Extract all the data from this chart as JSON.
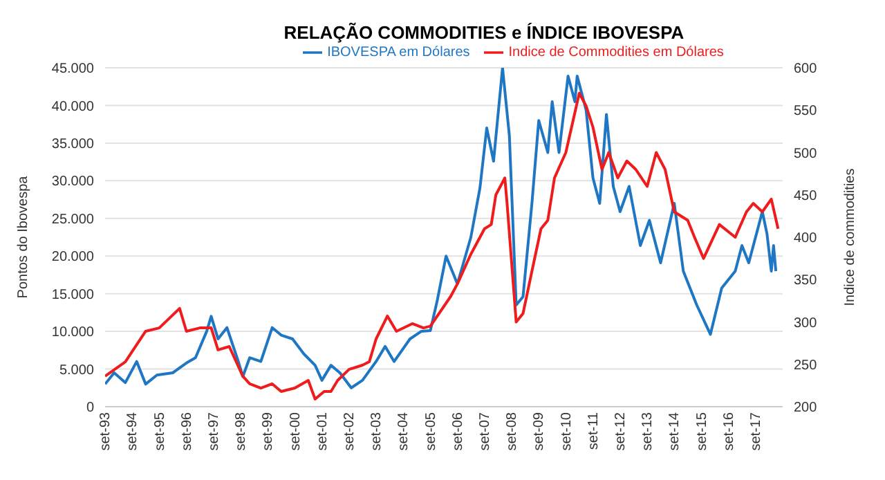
{
  "chart_data": {
    "type": "line",
    "title": "RELAÇÃO COMMODITIES e ÍNDICE IBOVESPA",
    "ylabel": "Pontos do Ibovespa",
    "y2label": "Indice de commodities",
    "xlim": [
      "1993-09",
      "2018-09"
    ],
    "xticks": [
      {
        "value": "1993-09",
        "label": "set-93"
      },
      {
        "value": "1994-09",
        "label": "set-94"
      },
      {
        "value": "1995-09",
        "label": "set-95"
      },
      {
        "value": "1996-09",
        "label": "set-96"
      },
      {
        "value": "1997-09",
        "label": "set-97"
      },
      {
        "value": "1998-09",
        "label": "set-98"
      },
      {
        "value": "1999-09",
        "label": "set-99"
      },
      {
        "value": "2000-09",
        "label": "set-00"
      },
      {
        "value": "2001-09",
        "label": "set-01"
      },
      {
        "value": "2002-09",
        "label": "set-02"
      },
      {
        "value": "2003-09",
        "label": "set-03"
      },
      {
        "value": "2004-09",
        "label": "set-04"
      },
      {
        "value": "2005-09",
        "label": "set-05"
      },
      {
        "value": "2006-09",
        "label": "set-06"
      },
      {
        "value": "2007-09",
        "label": "set-07"
      },
      {
        "value": "2008-09",
        "label": "set-08"
      },
      {
        "value": "2009-09",
        "label": "set-09"
      },
      {
        "value": "2010-09",
        "label": "set-10"
      },
      {
        "value": "2011-09",
        "label": "set-11"
      },
      {
        "value": "2012-09",
        "label": "set-12"
      },
      {
        "value": "2013-09",
        "label": "set-13"
      },
      {
        "value": "2014-09",
        "label": "set-14"
      },
      {
        "value": "2015-09",
        "label": "set-15"
      },
      {
        "value": "2016-09",
        "label": "set-16"
      },
      {
        "value": "2017-09",
        "label": "set-17"
      }
    ],
    "ylim": [
      0,
      45000
    ],
    "yticks": [
      0,
      {
        "value": 5000,
        "label": "5.000"
      },
      {
        "value": 10000,
        "label": "10.000"
      },
      {
        "value": 15000,
        "label": "15.000"
      },
      {
        "value": 20000,
        "label": "20.000"
      },
      {
        "value": 25000,
        "label": "25.000"
      },
      {
        "value": 30000,
        "label": "30.000"
      },
      {
        "value": 35000,
        "label": "35.000"
      },
      {
        "value": 40000,
        "label": "40.000"
      },
      {
        "value": 45000,
        "label": "45.000"
      }
    ],
    "y2lim": [
      200,
      600
    ],
    "y2ticks": [
      200,
      250,
      300,
      350,
      400,
      450,
      500,
      550,
      600
    ],
    "grid": "y",
    "legend": "top",
    "marker": "none",
    "line_style": "solid",
    "series": [
      {
        "name": "IBOVESPA em Dólares",
        "color": "#1f77c4",
        "x": [
          "1993-09",
          "1994-01",
          "1994-06",
          "1994-11",
          "1995-03",
          "1995-08",
          "1996-03",
          "1996-09",
          "1997-01",
          "1997-06",
          "1997-08",
          "1997-11",
          "1998-03",
          "1998-08",
          "1998-10",
          "1999-01",
          "1999-06",
          "1999-11",
          "2000-03",
          "2000-08",
          "2001-01",
          "2001-06",
          "2001-09",
          "2002-01",
          "2002-05",
          "2002-10",
          "2003-03",
          "2003-09",
          "2004-01",
          "2004-05",
          "2004-12",
          "2005-05",
          "2005-09",
          "2005-12",
          "2006-04",
          "2006-09",
          "2007-03",
          "2007-07",
          "2007-10",
          "2008-01",
          "2008-05",
          "2008-08",
          "2008-11",
          "2009-02",
          "2009-06",
          "2009-09",
          "2010-01",
          "2010-03",
          "2010-06",
          "2010-10",
          "2011-01",
          "2011-02",
          "2011-06",
          "2011-09",
          "2011-12",
          "2012-03",
          "2012-06",
          "2012-09",
          "2013-01",
          "2013-06",
          "2013-10",
          "2014-03",
          "2014-09",
          "2015-01",
          "2015-07",
          "2016-01",
          "2016-06",
          "2016-12",
          "2017-03",
          "2017-06",
          "2017-12",
          "2018-02",
          "2018-04",
          "2018-05",
          "2018-06"
        ],
        "values": [
          3000,
          4500,
          3200,
          6000,
          3000,
          4200,
          4500,
          5800,
          6500,
          10000,
          12000,
          9000,
          10500,
          6000,
          4000,
          6500,
          6000,
          10500,
          9500,
          9000,
          7000,
          5500,
          3500,
          5500,
          4500,
          2500,
          3500,
          6000,
          8000,
          6000,
          9000,
          10000,
          10100,
          14000,
          20000,
          16300,
          22500,
          29000,
          37000,
          32600,
          45000,
          36000,
          13500,
          14600,
          27000,
          38000,
          33750,
          40500,
          33750,
          43900,
          40500,
          43900,
          39400,
          30400,
          27000,
          38800,
          29250,
          25900,
          29250,
          21400,
          24750,
          19100,
          27000,
          18000,
          13500,
          9600,
          15750,
          18000,
          21400,
          19100,
          25900,
          23000,
          18000,
          21400,
          18000
        ]
      },
      {
        "name": "Indice de Commodities em Dólares",
        "color": "#ee1c1c",
        "axis": "y2",
        "x": [
          "1993-09",
          "1994-06",
          "1995-03",
          "1995-09",
          "1996-06",
          "1996-09",
          "1997-03",
          "1997-08",
          "1997-11",
          "1998-04",
          "1998-10",
          "1999-01",
          "1999-06",
          "1999-11",
          "2000-03",
          "2000-09",
          "2001-03",
          "2001-06",
          "2001-10",
          "2002-01",
          "2002-04",
          "2002-09",
          "2003-03",
          "2003-06",
          "2003-09",
          "2004-02",
          "2004-06",
          "2005-01",
          "2005-06",
          "2005-09",
          "2006-06",
          "2006-09",
          "2007-03",
          "2007-09",
          "2007-12",
          "2008-02",
          "2008-06",
          "2008-07",
          "2008-11",
          "2009-02",
          "2009-06",
          "2009-10",
          "2010-01",
          "2010-04",
          "2010-09",
          "2011-03",
          "2011-06",
          "2011-09",
          "2012-01",
          "2012-04",
          "2012-08",
          "2012-12",
          "2013-04",
          "2013-09",
          "2014-01",
          "2014-05",
          "2014-09",
          "2015-03",
          "2015-06",
          "2015-10",
          "2016-05",
          "2016-12",
          "2017-05",
          "2017-08",
          "2017-12",
          "2018-04",
          "2018-07"
        ],
        "values": [
          236,
          253,
          289,
          293,
          316,
          289,
          293,
          293,
          267,
          271,
          236,
          227,
          222,
          227,
          218,
          222,
          231,
          209,
          218,
          218,
          231,
          244,
          249,
          253,
          280,
          307,
          289,
          298,
          293,
          295,
          330,
          345,
          380,
          410,
          415,
          450,
          470,
          440,
          300,
          310,
          360,
          410,
          420,
          470,
          500,
          570,
          555,
          530,
          480,
          500,
          470,
          490,
          480,
          460,
          500,
          480,
          430,
          420,
          400,
          375,
          415,
          400,
          430,
          440,
          430,
          445,
          410
        ]
      }
    ]
  }
}
